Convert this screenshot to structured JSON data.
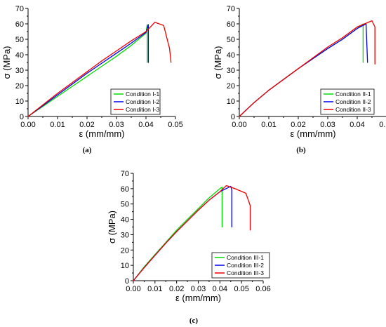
{
  "chart_data": [
    {
      "type": "line",
      "caption": "(a)",
      "xlabel": "ε (mm/mm)",
      "ylabel": "σ (MPa)",
      "xlim": [
        0,
        0.05
      ],
      "ylim": [
        0,
        70
      ],
      "x_ticks": [
        "0.00",
        "0.01",
        "0.02",
        "0.03",
        "0.04",
        "0.05"
      ],
      "y_ticks": [
        "0",
        "10",
        "20",
        "30",
        "40",
        "50",
        "60",
        "70"
      ],
      "legend_position": "bottom-right",
      "series": [
        {
          "name": "Condition I-1",
          "color": "#00dd00",
          "x": [
            0,
            0.005,
            0.01,
            0.015,
            0.02,
            0.025,
            0.03,
            0.035,
            0.04,
            0.0404,
            0.0404
          ],
          "y": [
            0,
            6.5,
            13,
            19.5,
            26,
            32.5,
            39,
            46,
            54,
            59.5,
            35
          ]
        },
        {
          "name": "Condition I-2",
          "color": "#0000ee",
          "x": [
            0,
            0.005,
            0.01,
            0.015,
            0.02,
            0.025,
            0.03,
            0.035,
            0.04,
            0.0408,
            0.0408
          ],
          "y": [
            0,
            7,
            14,
            21,
            28,
            34.5,
            41,
            47.5,
            54.5,
            59.5,
            35
          ]
        },
        {
          "name": "Condition I-3",
          "color": "#ee0000",
          "x": [
            0,
            0.005,
            0.01,
            0.015,
            0.02,
            0.025,
            0.03,
            0.035,
            0.04,
            0.043,
            0.046,
            0.048,
            0.0485
          ],
          "y": [
            0,
            7.5,
            15,
            22,
            29,
            36,
            42.5,
            49,
            55,
            61,
            59,
            44,
            35
          ]
        }
      ]
    },
    {
      "type": "line",
      "caption": "(b)",
      "xlabel": "ε (mm/mm)",
      "ylabel": "σ (MPa)",
      "xlim": [
        0,
        0.05
      ],
      "ylim": [
        0,
        70
      ],
      "x_ticks": [
        "0.00",
        "0.01",
        "0.02",
        "0.03",
        "0.04",
        "0.05"
      ],
      "y_ticks": [
        "0",
        "10",
        "20",
        "30",
        "40",
        "50",
        "60",
        "70"
      ],
      "legend_position": "bottom-right",
      "series": [
        {
          "name": "Condition II-1",
          "color": "#00dd00",
          "x": [
            0,
            0.005,
            0.01,
            0.015,
            0.02,
            0.025,
            0.03,
            0.035,
            0.04,
            0.042,
            0.042
          ],
          "y": [
            0,
            9,
            17,
            24,
            31,
            37.5,
            44,
            50,
            57,
            60,
            35
          ]
        },
        {
          "name": "Condition II-2",
          "color": "#0000ee",
          "x": [
            0,
            0.005,
            0.01,
            0.015,
            0.02,
            0.025,
            0.03,
            0.035,
            0.04,
            0.043,
            0.0435
          ],
          "y": [
            0,
            9,
            17,
            24,
            31,
            37.5,
            44,
            50,
            57,
            60,
            35
          ]
        },
        {
          "name": "Condition II-3",
          "color": "#ee0000",
          "x": [
            0,
            0.005,
            0.01,
            0.015,
            0.02,
            0.025,
            0.03,
            0.035,
            0.04,
            0.045,
            0.046,
            0.046
          ],
          "y": [
            0,
            9,
            17,
            24,
            31,
            38,
            45,
            51,
            58,
            62,
            58,
            34
          ]
        }
      ]
    },
    {
      "type": "line",
      "caption": "(c)",
      "xlabel": "ε (mm/mm)",
      "ylabel": "σ (MPa)",
      "xlim": [
        0,
        0.06
      ],
      "ylim": [
        0,
        70
      ],
      "x_ticks": [
        "0.00",
        "0.01",
        "0.02",
        "0.03",
        "0.04",
        "0.05",
        "0.06"
      ],
      "y_ticks": [
        "0",
        "10",
        "20",
        "30",
        "40",
        "50",
        "60",
        "70"
      ],
      "legend_position": "bottom-right",
      "series": [
        {
          "name": "Condition III-1",
          "color": "#00dd00",
          "x": [
            0,
            0.005,
            0.01,
            0.015,
            0.02,
            0.025,
            0.03,
            0.035,
            0.04,
            0.041,
            0.041
          ],
          "y": [
            0,
            9,
            17,
            25,
            33,
            40,
            47,
            54,
            60,
            61,
            35
          ]
        },
        {
          "name": "Condition III-2",
          "color": "#0000ee",
          "x": [
            0,
            0.005,
            0.01,
            0.015,
            0.02,
            0.025,
            0.03,
            0.035,
            0.04,
            0.045,
            0.0455,
            0.0455
          ],
          "y": [
            0,
            8.5,
            16.5,
            24.5,
            32,
            39,
            46,
            52.5,
            58,
            61.5,
            59,
            35
          ]
        },
        {
          "name": "Condition III-3",
          "color": "#ee0000",
          "x": [
            0,
            0.005,
            0.01,
            0.015,
            0.02,
            0.025,
            0.03,
            0.035,
            0.04,
            0.043,
            0.047,
            0.052,
            0.054,
            0.054
          ],
          "y": [
            0,
            8.5,
            16.5,
            24.5,
            32,
            39,
            46,
            52.5,
            58,
            62,
            60,
            57,
            49,
            33
          ]
        }
      ]
    }
  ]
}
